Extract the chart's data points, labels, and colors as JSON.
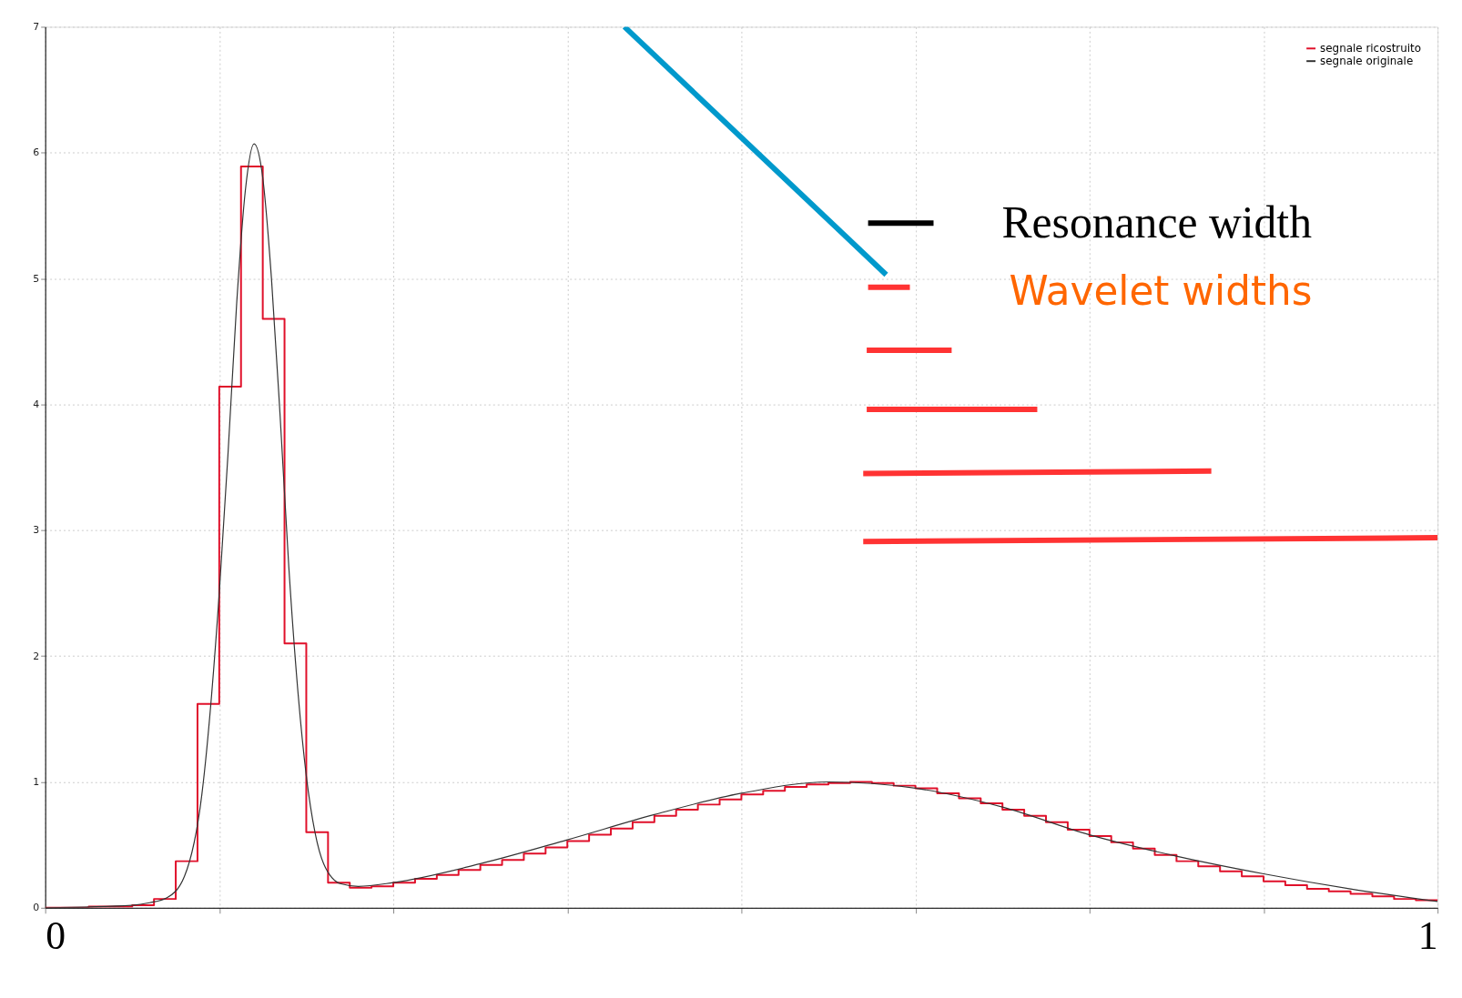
{
  "chart_data": {
    "type": "line",
    "xlim": [
      0,
      1
    ],
    "ylim": [
      0,
      7
    ],
    "xticks": [
      0,
      {
        "value": 0.125,
        "label": null
      },
      {
        "value": 0.25,
        "label": null
      },
      {
        "value": 0.375,
        "label": null
      },
      {
        "value": 0.5,
        "label": null
      },
      {
        "value": 0.625,
        "label": null
      },
      {
        "value": 0.75,
        "label": null
      },
      {
        "value": 0.875,
        "label": null
      },
      1
    ],
    "yticks": [
      0,
      1,
      2,
      3,
      4,
      5,
      6,
      7
    ],
    "grid": true,
    "legend": "top right",
    "annotations": [
      "Resonance width",
      "Wavelet widths"
    ],
    "series": [
      {
        "name": "segnale ricostruito",
        "type": "step",
        "color": "#e0102a",
        "x": [
          0,
          0.015625,
          0.03125,
          0.046875,
          0.0625,
          0.078125,
          0.09375,
          0.109375,
          0.125,
          0.140625,
          0.15625,
          0.171875,
          0.1875,
          0.203125,
          0.21875,
          0.234375,
          0.25,
          0.265625,
          0.28125,
          0.296875,
          0.3125,
          0.328125,
          0.34375,
          0.359375,
          0.375,
          0.390625,
          0.40625,
          0.421875,
          0.4375,
          0.453125,
          0.46875,
          0.484375,
          0.5,
          0.515625,
          0.53125,
          0.546875,
          0.5625,
          0.578125,
          0.59375,
          0.609375,
          0.625,
          0.640625,
          0.65625,
          0.671875,
          0.6875,
          0.703125,
          0.71875,
          0.734375,
          0.75,
          0.765625,
          0.78125,
          0.796875,
          0.8125,
          0.828125,
          0.84375,
          0.859375,
          0.875,
          0.890625,
          0.90625,
          0.921875,
          0.9375,
          0.953125,
          0.96875,
          0.984375,
          1
        ],
        "values": [
          0,
          0,
          0.01,
          0.01,
          0.02,
          0.07,
          0.37,
          1.62,
          4.14,
          5.89,
          4.68,
          2.1,
          0.6,
          0.2,
          0.16,
          0.17,
          0.2,
          0.23,
          0.26,
          0.3,
          0.34,
          0.38,
          0.43,
          0.48,
          0.53,
          0.58,
          0.63,
          0.68,
          0.73,
          0.78,
          0.82,
          0.86,
          0.9,
          0.93,
          0.96,
          0.98,
          0.99,
          1,
          0.99,
          0.97,
          0.95,
          0.91,
          0.87,
          0.83,
          0.78,
          0.73,
          0.68,
          0.62,
          0.57,
          0.52,
          0.47,
          0.42,
          0.37,
          0.33,
          0.29,
          0.25,
          0.21,
          0.18,
          0.15,
          0.13,
          0.11,
          0.09,
          0.07,
          0.06,
          0.06
        ]
      },
      {
        "name": "segnale originale",
        "color": "#333333",
        "x": [
          0,
          0.0625,
          0.075,
          0.0875,
          0.1,
          0.1125,
          0.125,
          0.13125,
          0.1375,
          0.14375,
          0.15,
          0.15625,
          0.1625,
          0.16875,
          0.175,
          0.18125,
          0.1875,
          0.19375,
          0.2,
          0.2125,
          0.225,
          0.25,
          0.3125,
          0.375,
          0.4375,
          0.5,
          0.5625,
          0.625,
          0.6875,
          0.75,
          0.8125,
          0.875,
          0.9375,
          1
        ],
        "values": [
          0,
          0.02,
          0.04,
          0.08,
          0.25,
          0.9,
          2.5,
          3.6,
          4.8,
          5.7,
          6.07,
          5.8,
          5,
          3.9,
          2.7,
          1.75,
          1.05,
          0.6,
          0.35,
          0.19,
          0.17,
          0.2,
          0.35,
          0.54,
          0.74,
          0.91,
          1,
          0.95,
          0.8,
          0.58,
          0.41,
          0.27,
          0.15,
          0.05
        ]
      },
      {
        "color": "#000000",
        "x": [
          0.591,
          0.638
        ],
        "values": [
          5.44,
          5.44
        ]
      },
      {
        "color": "#ff3333",
        "x": [
          0.591,
          0.621
        ],
        "values": [
          4.93,
          4.93
        ]
      },
      {
        "color": "#ff3333",
        "x": [
          0.59,
          0.651
        ],
        "values": [
          4.43,
          4.43
        ]
      },
      {
        "color": "#ff3333",
        "x": [
          0.59,
          0.7125
        ],
        "values": [
          3.96,
          3.96
        ]
      },
      {
        "color": "#ff3333",
        "x": [
          0.5875,
          0.8375
        ],
        "values": [
          3.45,
          3.47
        ]
      },
      {
        "color": "#ff3333",
        "x": [
          0.5875,
          1
        ],
        "values": [
          2.91,
          2.94
        ]
      },
      {
        "color": "#0099cc",
        "x": [
          0.416,
          0.604
        ],
        "values": [
          7,
          5.03
        ]
      }
    ]
  }
}
